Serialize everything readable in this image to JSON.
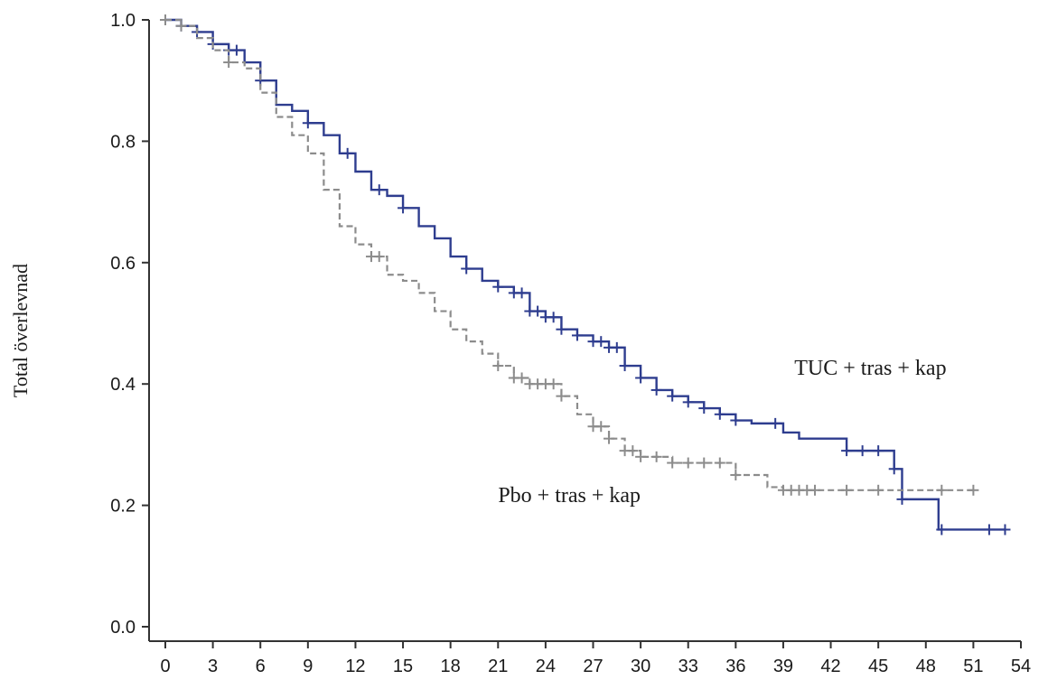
{
  "chart_data": {
    "type": "line",
    "title": "",
    "xlabel": "",
    "ylabel": "Total överlevnad",
    "xlim": [
      0,
      54
    ],
    "ylim": [
      0,
      1
    ],
    "x_ticks": [
      "0",
      "3",
      "6",
      "9",
      "12",
      "15",
      "18",
      "21",
      "24",
      "27",
      "30",
      "33",
      "36",
      "39",
      "42",
      "45",
      "48",
      "51",
      "54"
    ],
    "y_ticks": [
      "0.0",
      "0.2",
      "0.4",
      "0.6",
      "0.8",
      "1.0"
    ],
    "grid": false,
    "legend": "none",
    "series": [
      {
        "name": "TUC + tras + kap",
        "color": "#2e3d8f",
        "line_style": "solid",
        "points": [
          [
            0,
            1.0
          ],
          [
            1,
            0.99
          ],
          [
            2,
            0.98
          ],
          [
            3,
            0.96
          ],
          [
            4,
            0.95
          ],
          [
            5,
            0.93
          ],
          [
            6,
            0.9
          ],
          [
            7,
            0.86
          ],
          [
            8,
            0.85
          ],
          [
            9,
            0.83
          ],
          [
            10,
            0.81
          ],
          [
            11,
            0.78
          ],
          [
            12,
            0.75
          ],
          [
            13,
            0.72
          ],
          [
            14,
            0.71
          ],
          [
            15,
            0.69
          ],
          [
            16,
            0.66
          ],
          [
            17,
            0.64
          ],
          [
            18,
            0.61
          ],
          [
            19,
            0.59
          ],
          [
            20,
            0.57
          ],
          [
            21,
            0.56
          ],
          [
            22,
            0.55
          ],
          [
            23,
            0.52
          ],
          [
            24,
            0.51
          ],
          [
            25,
            0.49
          ],
          [
            26,
            0.48
          ],
          [
            27,
            0.47
          ],
          [
            28,
            0.46
          ],
          [
            29,
            0.43
          ],
          [
            30,
            0.41
          ],
          [
            31,
            0.39
          ],
          [
            32,
            0.38
          ],
          [
            33,
            0.37
          ],
          [
            34,
            0.36
          ],
          [
            35,
            0.35
          ],
          [
            36,
            0.34
          ],
          [
            37,
            0.335
          ],
          [
            38,
            0.335
          ],
          [
            39,
            0.32
          ],
          [
            40,
            0.31
          ],
          [
            41,
            0.31
          ],
          [
            42,
            0.31
          ],
          [
            43,
            0.29
          ],
          [
            44,
            0.29
          ],
          [
            45,
            0.29
          ],
          [
            46,
            0.26
          ],
          [
            46.5,
            0.21
          ],
          [
            47,
            0.21
          ],
          [
            48,
            0.21
          ],
          [
            48.8,
            0.16
          ],
          [
            50,
            0.16
          ],
          [
            53,
            0.16
          ]
        ],
        "censor_x": [
          1,
          2,
          3,
          4,
          4.5,
          6,
          9,
          11.5,
          13.5,
          15,
          19,
          21,
          22,
          22.5,
          23,
          23.5,
          24,
          24.5,
          25,
          26,
          27,
          27.5,
          28,
          28.5,
          29,
          30,
          31,
          32,
          33,
          34,
          35,
          36,
          38.5,
          43,
          44,
          45,
          46,
          46.5,
          49,
          52,
          53
        ]
      },
      {
        "name": "Pbo + tras + kap",
        "color": "#8c8c8c",
        "line_style": "dashed",
        "points": [
          [
            0,
            1.0
          ],
          [
            1,
            0.99
          ],
          [
            2,
            0.97
          ],
          [
            3,
            0.95
          ],
          [
            4,
            0.93
          ],
          [
            5,
            0.92
          ],
          [
            6,
            0.88
          ],
          [
            7,
            0.84
          ],
          [
            8,
            0.81
          ],
          [
            9,
            0.78
          ],
          [
            10,
            0.72
          ],
          [
            11,
            0.66
          ],
          [
            12,
            0.63
          ],
          [
            13,
            0.61
          ],
          [
            14,
            0.58
          ],
          [
            15,
            0.57
          ],
          [
            16,
            0.55
          ],
          [
            17,
            0.52
          ],
          [
            18,
            0.49
          ],
          [
            19,
            0.47
          ],
          [
            20,
            0.45
          ],
          [
            21,
            0.43
          ],
          [
            22,
            0.41
          ],
          [
            23,
            0.4
          ],
          [
            24,
            0.4
          ],
          [
            25,
            0.38
          ],
          [
            26,
            0.35
          ],
          [
            27,
            0.33
          ],
          [
            28,
            0.31
          ],
          [
            29,
            0.29
          ],
          [
            30,
            0.28
          ],
          [
            31,
            0.28
          ],
          [
            32,
            0.27
          ],
          [
            33,
            0.27
          ],
          [
            34,
            0.27
          ],
          [
            35,
            0.27
          ],
          [
            36,
            0.25
          ],
          [
            37,
            0.25
          ],
          [
            38,
            0.23
          ],
          [
            39,
            0.225
          ],
          [
            42,
            0.225
          ],
          [
            45,
            0.225
          ],
          [
            48,
            0.225
          ],
          [
            51,
            0.225
          ]
        ],
        "censor_x": [
          0,
          1,
          4,
          13,
          13.5,
          21,
          22,
          22.5,
          23,
          23.5,
          24,
          24.5,
          25,
          27,
          27.5,
          28,
          29,
          29.5,
          30,
          31,
          32,
          33,
          34,
          35,
          36,
          39,
          39.5,
          40,
          40.5,
          41,
          43,
          45,
          49,
          51
        ]
      }
    ],
    "annotations": [
      {
        "text": "TUC + tras + kap",
        "x": 44.5,
        "y": 0.415
      },
      {
        "text": "Pbo + tras + kap",
        "x": 25.5,
        "y": 0.205
      }
    ]
  }
}
